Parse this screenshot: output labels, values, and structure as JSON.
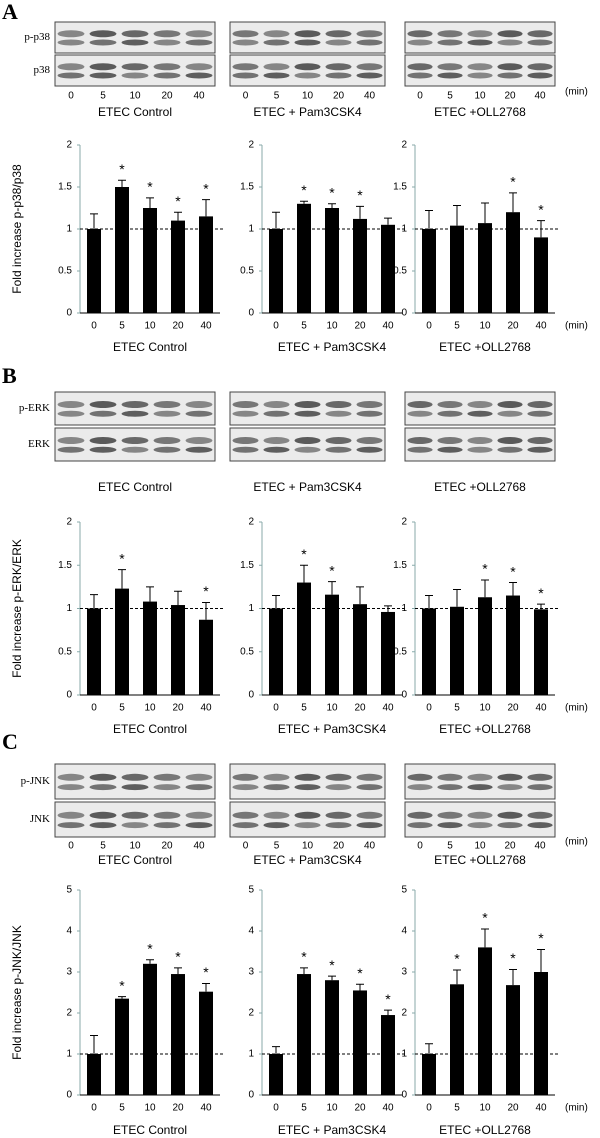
{
  "panels": [
    {
      "label": "A",
      "blot_rows": [
        "p-p38",
        "p38"
      ],
      "lane_labels": [
        "0",
        "5",
        "10",
        "20",
        "40"
      ],
      "lane_unit": "(min)",
      "blot_titles": [
        "ETEC Control",
        "ETEC + Pam3CSK4",
        "ETEC +OLL2768"
      ]
    },
    {
      "label": "B",
      "blot_rows": [
        "p-ERK",
        "ERK"
      ],
      "blot_titles": [
        "ETEC Control",
        "ETEC + Pam3CSK4",
        "ETEC +OLL2768"
      ]
    },
    {
      "label": "C",
      "blot_rows": [
        "p-JNK",
        "JNK"
      ],
      "lane_labels": [
        "0",
        "5",
        "10",
        "20",
        "40"
      ],
      "lane_unit": "(min)",
      "blot_titles": [
        "ETEC Control",
        "ETEC + Pam3CSK4",
        "ETEC +OLL2768"
      ]
    }
  ],
  "chart_data": [
    {
      "type": "bar",
      "title": "ETEC Control",
      "y_label": "Fold increase p-p38/p38",
      "categories": [
        "0",
        "5",
        "10",
        "20",
        "40"
      ],
      "values": [
        1.0,
        1.5,
        1.25,
        1.1,
        1.15
      ],
      "errors": [
        0.18,
        0.08,
        0.12,
        0.1,
        0.2
      ],
      "significance": [
        null,
        "*",
        "*",
        "*",
        "*"
      ],
      "reference_line": 1,
      "color": "#000000",
      "ylim": [
        0,
        2
      ],
      "yticks": [
        0,
        0.5,
        1,
        1.5,
        2
      ]
    },
    {
      "type": "bar",
      "title": "ETEC + Pam3CSK4",
      "categories": [
        "0",
        "5",
        "10",
        "20",
        "40"
      ],
      "values": [
        1.0,
        1.3,
        1.25,
        1.12,
        1.05
      ],
      "errors": [
        0.2,
        0.03,
        0.05,
        0.15,
        0.08
      ],
      "significance": [
        null,
        "*",
        "*",
        "*",
        null
      ],
      "reference_line": 1,
      "color": "#000000",
      "ylim": [
        0,
        2
      ],
      "yticks": [
        0,
        0.5,
        1,
        1.5,
        2
      ]
    },
    {
      "type": "bar",
      "title": "ETEC +OLL2768",
      "x_unit": "(min)",
      "categories": [
        "0",
        "5",
        "10",
        "20",
        "40"
      ],
      "values": [
        1.0,
        1.04,
        1.07,
        1.2,
        0.9
      ],
      "errors": [
        0.22,
        0.24,
        0.24,
        0.23,
        0.2
      ],
      "significance": [
        null,
        null,
        null,
        "*",
        "*"
      ],
      "reference_line": 1,
      "color": "#000000",
      "ylim": [
        0,
        2
      ],
      "yticks": [
        0,
        0.5,
        1,
        1.5,
        2
      ]
    },
    {
      "type": "bar",
      "title": "ETEC Control",
      "y_label": "Fold increase p-ERK/ERK",
      "categories": [
        "0",
        "5",
        "10",
        "20",
        "40"
      ],
      "values": [
        1.0,
        1.23,
        1.08,
        1.04,
        0.87
      ],
      "errors": [
        0.16,
        0.22,
        0.17,
        0.16,
        0.2
      ],
      "significance": [
        null,
        "*",
        null,
        null,
        "*"
      ],
      "reference_line": 1,
      "color": "#000000",
      "ylim": [
        0,
        2
      ],
      "yticks": [
        0,
        0.5,
        1,
        1.5,
        2
      ]
    },
    {
      "type": "bar",
      "title": "ETEC + Pam3CSK4",
      "categories": [
        "0",
        "5",
        "10",
        "20",
        "40"
      ],
      "values": [
        1.0,
        1.3,
        1.16,
        1.05,
        0.96
      ],
      "errors": [
        0.15,
        0.2,
        0.15,
        0.2,
        0.07
      ],
      "significance": [
        null,
        "*",
        "*",
        null,
        null
      ],
      "reference_line": 1,
      "color": "#000000",
      "ylim": [
        0,
        2
      ],
      "yticks": [
        0,
        0.5,
        1,
        1.5,
        2
      ]
    },
    {
      "type": "bar",
      "title": "ETEC +OLL2768",
      "x_unit": "(min)",
      "categories": [
        "0",
        "5",
        "10",
        "20",
        "40"
      ],
      "values": [
        1.0,
        1.02,
        1.13,
        1.15,
        0.99
      ],
      "errors": [
        0.15,
        0.2,
        0.2,
        0.15,
        0.06
      ],
      "significance": [
        null,
        null,
        "*",
        "*",
        "*"
      ],
      "reference_line": 1,
      "color": "#000000",
      "ylim": [
        0,
        2
      ],
      "yticks": [
        0,
        0.5,
        1,
        1.5,
        2
      ]
    },
    {
      "type": "bar",
      "title": "ETEC Control",
      "y_label": "Fold increase p-JNK/JNK",
      "categories": [
        "0",
        "5",
        "10",
        "20",
        "40"
      ],
      "values": [
        1.0,
        2.35,
        3.2,
        2.95,
        2.52
      ],
      "errors": [
        0.45,
        0.05,
        0.1,
        0.15,
        0.2
      ],
      "significance": [
        null,
        "*",
        "*",
        "*",
        "*"
      ],
      "reference_line": 1,
      "color": "#000000",
      "ylim": [
        0,
        5
      ],
      "yticks": [
        0,
        1,
        2,
        3,
        4,
        5
      ]
    },
    {
      "type": "bar",
      "title": "ETEC + Pam3CSK4",
      "categories": [
        "0",
        "5",
        "10",
        "20",
        "40"
      ],
      "values": [
        1.0,
        2.95,
        2.8,
        2.55,
        1.95
      ],
      "errors": [
        0.18,
        0.15,
        0.1,
        0.15,
        0.12
      ],
      "significance": [
        null,
        "*",
        "*",
        "*",
        "*"
      ],
      "reference_line": 1,
      "color": "#000000",
      "ylim": [
        0,
        5
      ],
      "yticks": [
        0,
        1,
        2,
        3,
        4,
        5
      ]
    },
    {
      "type": "bar",
      "title": "ETEC +OLL2768",
      "x_unit": "(min)",
      "categories": [
        "0",
        "5",
        "10",
        "20",
        "40"
      ],
      "values": [
        1.0,
        2.7,
        3.6,
        2.68,
        3.0
      ],
      "errors": [
        0.25,
        0.35,
        0.45,
        0.38,
        0.55
      ],
      "significance": [
        null,
        "*",
        "*",
        "*",
        "*"
      ],
      "reference_line": 1,
      "color": "#000000",
      "ylim": [
        0,
        5
      ],
      "yticks": [
        0,
        1,
        2,
        3,
        4,
        5
      ]
    }
  ]
}
